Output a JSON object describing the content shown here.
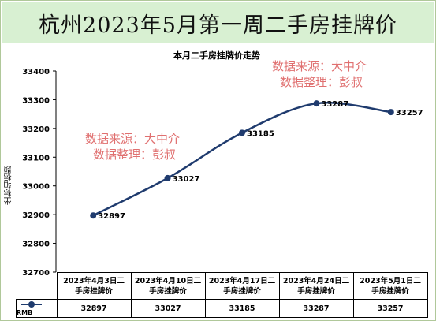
{
  "header": {
    "title": "杭州2023年5月第一周二手房挂牌价"
  },
  "watermarks": [
    {
      "line1": "数据来源：大中介",
      "line2": "数据整理：彭叔"
    },
    {
      "line1": "数据来源：大中介",
      "line2": "数据整理：彭叔"
    }
  ],
  "chart_data": {
    "type": "line",
    "title": "本月二手房挂牌价走势",
    "ylabel": "坐标轴标题",
    "xlabel": "",
    "categories": [
      "2023年4月3日二手房挂牌价",
      "2023年4月10日二手房挂牌价",
      "2023年4月17日二手房挂牌价",
      "2023年4月24日二手房挂牌价",
      "2023年5月1日二手房挂牌价"
    ],
    "category_lines": [
      [
        "2023年4月3日二",
        "手房挂牌价"
      ],
      [
        "2023年4月10日二",
        "手房挂牌价"
      ],
      [
        "2023年4月17日二",
        "手房挂牌价"
      ],
      [
        "2023年4月24日二",
        "手房挂牌价"
      ],
      [
        "2023年5月1日二",
        "手房挂牌价"
      ]
    ],
    "series": [
      {
        "name": "RMB",
        "values": [
          32897,
          33027,
          33185,
          33287,
          33257
        ],
        "color": "#1f3b6e"
      }
    ],
    "ylim": [
      32700,
      33400
    ],
    "yticks": [
      32700,
      32800,
      32900,
      33000,
      33100,
      33200,
      33300,
      33400
    ],
    "grid": false,
    "legend": "data-table"
  }
}
